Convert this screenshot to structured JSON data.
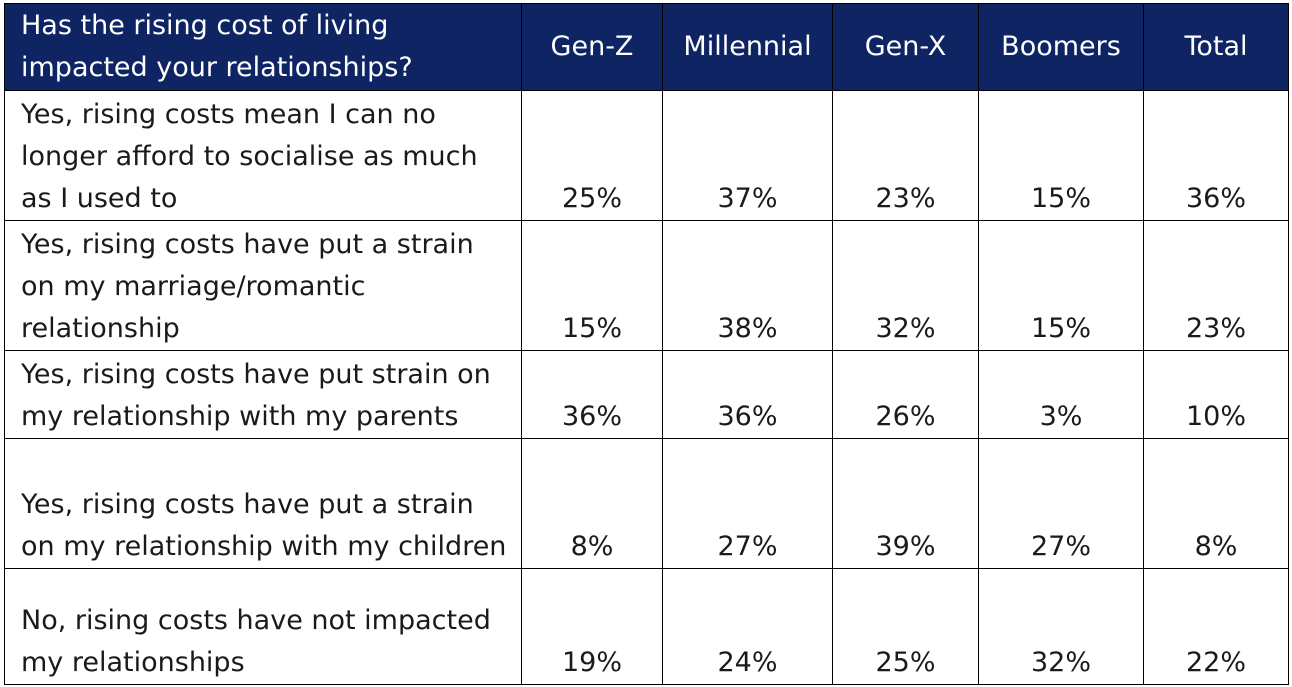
{
  "colors": {
    "header_background": "#0e2463",
    "header_text": "#ffffff",
    "body_text": "#1a1a1a",
    "grid": "#000000"
  },
  "chart_data": {
    "type": "table",
    "question": "Has the rising cost of living impacted your relationships?",
    "columns": [
      "Gen-Z",
      "Millennial",
      "Gen-X",
      "Boomers",
      "Total"
    ],
    "rows": [
      {
        "label": "Yes, rising costs mean I can no longer afford to socialise as much as I used to",
        "values": [
          "25%",
          "37%",
          "23%",
          "15%",
          "36%"
        ]
      },
      {
        "label": "Yes, rising costs have put a strain on my marriage/romantic relationship",
        "values": [
          "15%",
          "38%",
          "32%",
          "15%",
          "23%"
        ]
      },
      {
        "label": "Yes, rising costs have put strain on my relationship with my parents",
        "values": [
          "36%",
          "36%",
          "26%",
          "3%",
          "10%"
        ]
      },
      {
        "label": "Yes, rising costs have put a strain on my relationship with my children",
        "values": [
          "8%",
          "27%",
          "39%",
          "27%",
          "8%"
        ]
      },
      {
        "label": "No, rising costs have not impacted my relationships",
        "values": [
          "19%",
          "24%",
          "25%",
          "32%",
          "22%"
        ]
      }
    ]
  }
}
